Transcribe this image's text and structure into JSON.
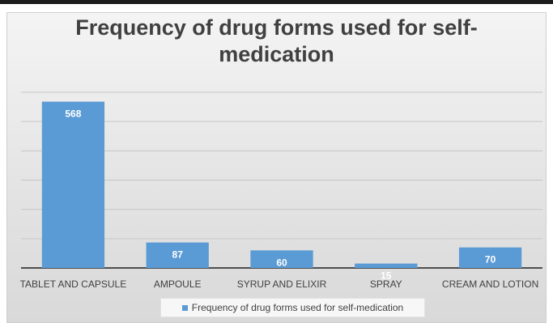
{
  "chart_data": {
    "type": "bar",
    "title": "Frequency of drug forms used for self-medication",
    "categories": [
      "TABLET AND CAPSULE",
      "AMPOULE",
      "SYRUP AND ELIXIR",
      "SPRAY",
      "CREAM AND LOTION"
    ],
    "series": [
      {
        "name": "Frequency of drug forms used for self-medication",
        "values": [
          568,
          87,
          60,
          15,
          70
        ],
        "color": "#5b9bd5"
      }
    ],
    "xlabel": "",
    "ylabel": "",
    "ylim": [
      0,
      600
    ],
    "y_tick_step": 100,
    "y_tick_labels_visible": false,
    "grid": true,
    "data_labels": true,
    "legend": "bottom"
  }
}
